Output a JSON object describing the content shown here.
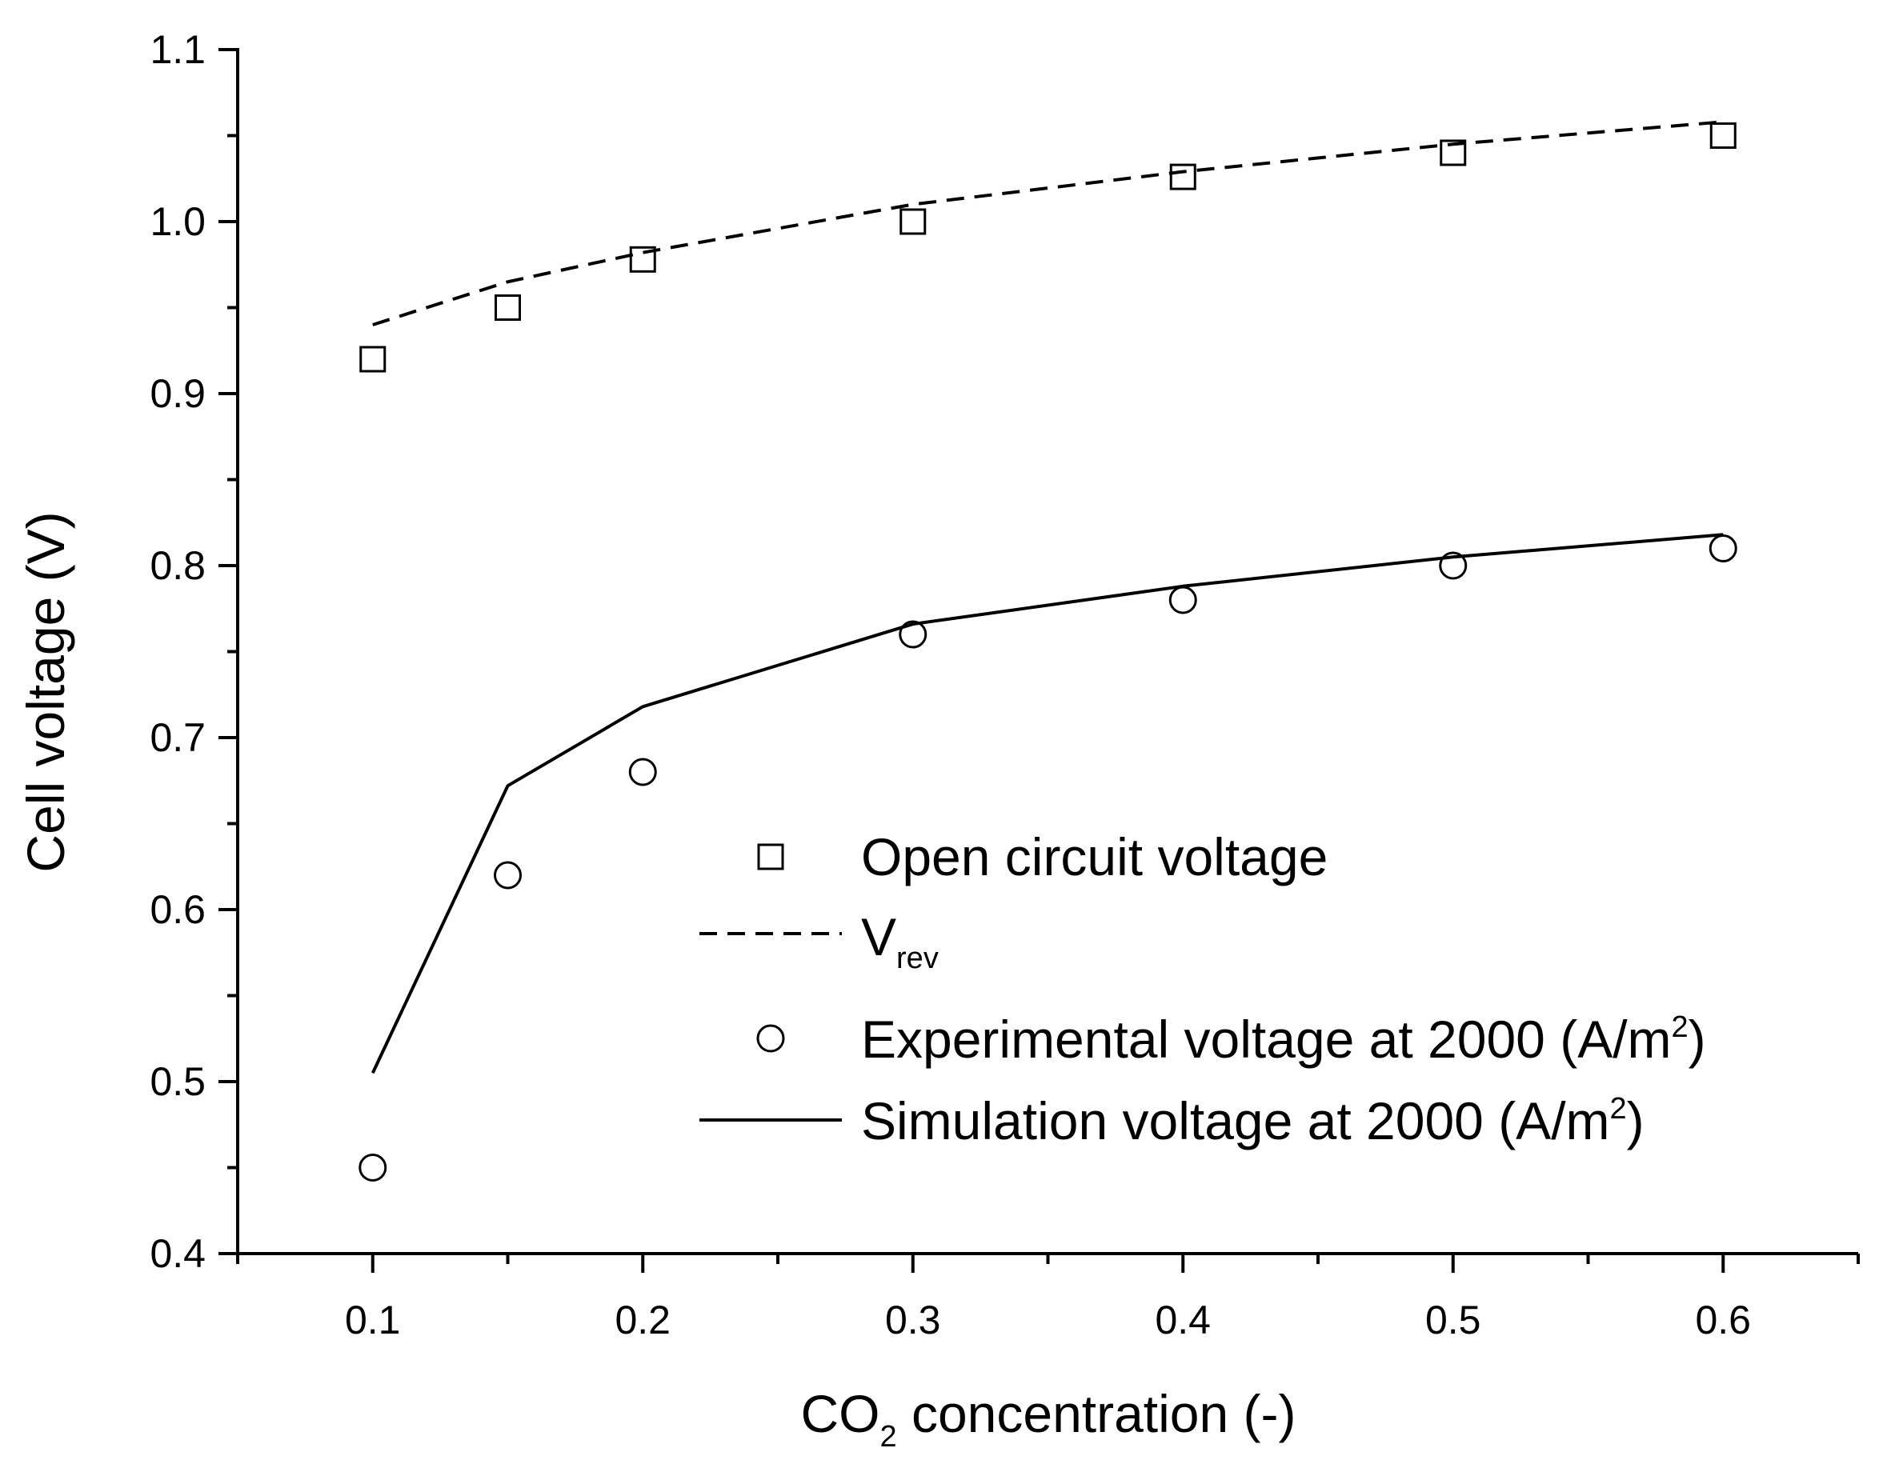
{
  "chart_data": {
    "type": "line",
    "title": "",
    "xlabel": {
      "prefix": "CO",
      "sub": "2",
      "suffix": " concentration (-)"
    },
    "ylabel": "Cell voltage (V)",
    "xlim": [
      0.05,
      0.65
    ],
    "ylim": [
      0.4,
      1.1
    ],
    "x_ticks": [
      "0.1",
      "0.2",
      "0.3",
      "0.4",
      "0.5",
      "0.6"
    ],
    "y_ticks": [
      "0.4",
      "0.5",
      "0.6",
      "0.7",
      "0.8",
      "0.9",
      "1.0",
      "1.1"
    ],
    "grid": false,
    "legend_position": "center-right",
    "series": [
      {
        "name": "Open circuit voltage",
        "style": "square-markers",
        "x": [
          0.1,
          0.15,
          0.2,
          0.3,
          0.4,
          0.5,
          0.6
        ],
        "y": [
          0.92,
          0.95,
          0.978,
          1.0,
          1.026,
          1.04,
          1.05
        ]
      },
      {
        "name": "V",
        "name_sub": "rev",
        "style": "dashed-line",
        "x": [
          0.1,
          0.15,
          0.2,
          0.3,
          0.4,
          0.5,
          0.6
        ],
        "y": [
          0.94,
          0.965,
          0.982,
          1.01,
          1.029,
          1.045,
          1.058
        ]
      },
      {
        "name": "Experimental voltage at 2000 (A/m",
        "name_sup": "2",
        "name_end": ")",
        "style": "circle-markers",
        "x": [
          0.1,
          0.15,
          0.2,
          0.3,
          0.4,
          0.5,
          0.6
        ],
        "y": [
          0.45,
          0.62,
          0.68,
          0.76,
          0.78,
          0.8,
          0.81
        ]
      },
      {
        "name": "Simulation voltage at 2000 (A/m",
        "name_sup": "2",
        "name_end": ")",
        "style": "solid-line",
        "x": [
          0.1,
          0.15,
          0.2,
          0.3,
          0.4,
          0.5,
          0.6
        ],
        "y": [
          0.505,
          0.672,
          0.718,
          0.766,
          0.788,
          0.805,
          0.818
        ]
      }
    ]
  }
}
